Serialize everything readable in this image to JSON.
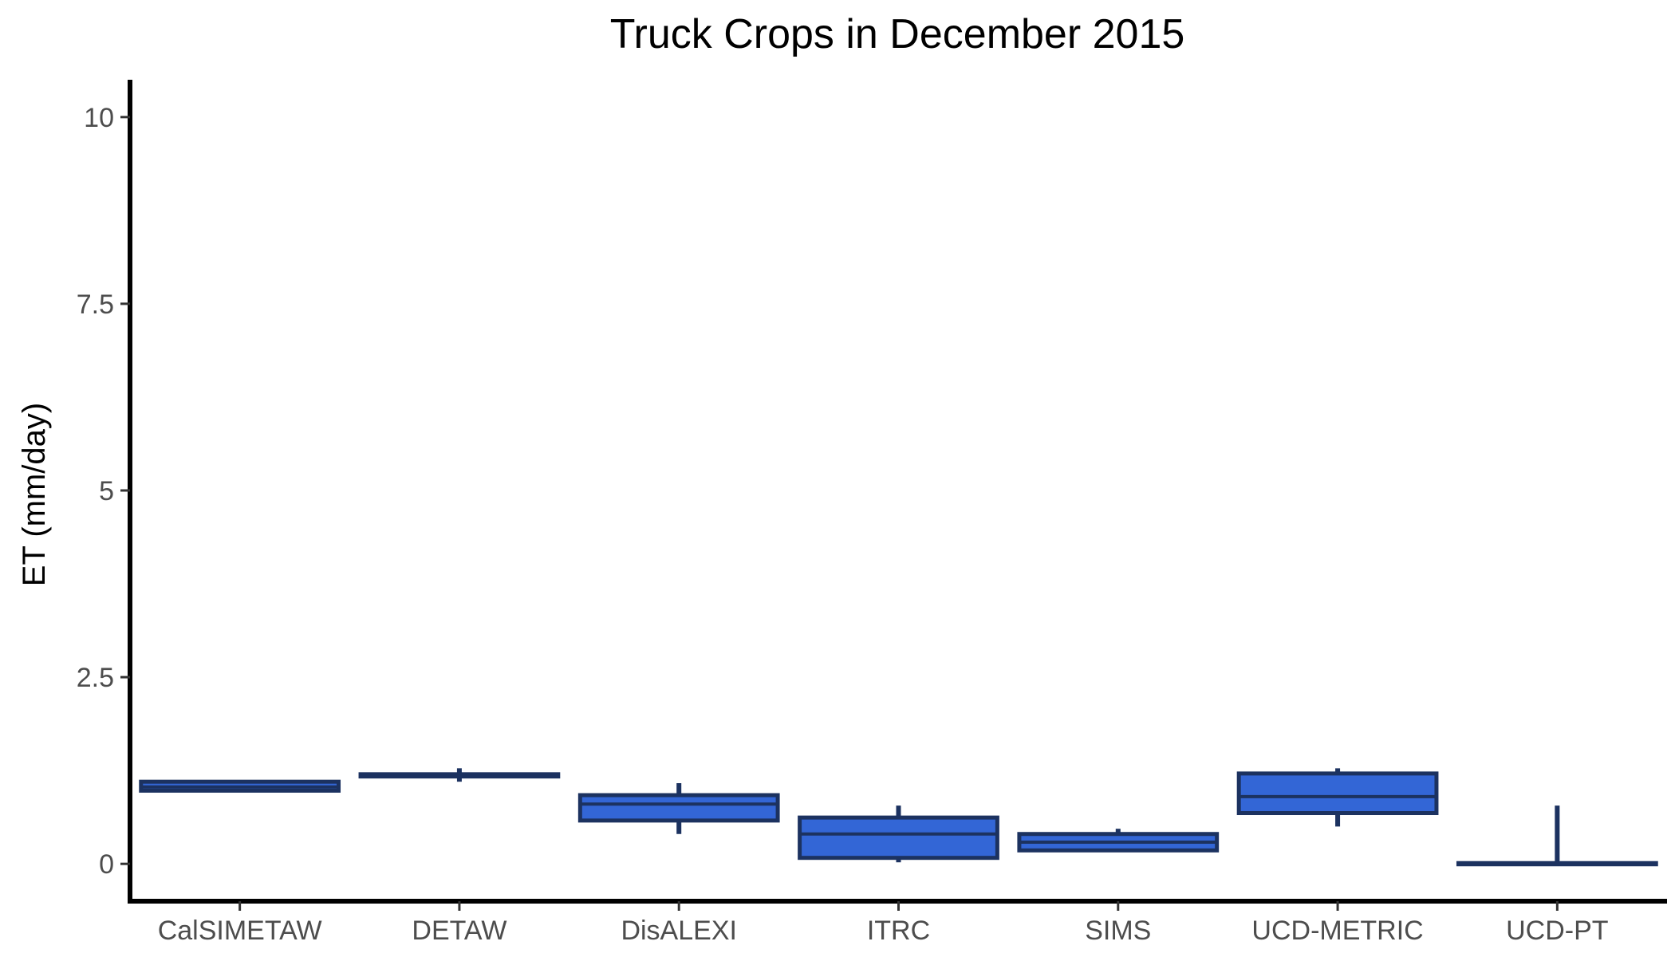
{
  "chart_data": {
    "type": "box",
    "title": "Truck Crops in December 2015",
    "xlabel": "",
    "ylabel": "ET (mm/day)",
    "ylim": [
      -0.5,
      10.5
    ],
    "yticks": [
      0,
      2.5,
      5,
      7.5,
      10
    ],
    "ytick_labels": [
      "0",
      "2.5",
      "5",
      "7.5",
      "10"
    ],
    "grid": false,
    "legend": "none",
    "categories": [
      "CalSIMETAW",
      "DETAW",
      "DisALEXI",
      "ITRC",
      "SIMS",
      "UCD-METRIC",
      "UCD-PT"
    ],
    "boxes": [
      {
        "category": "CalSIMETAW",
        "min": 0.97,
        "q1": 0.98,
        "median": 1.03,
        "q3": 1.1,
        "max": 1.11
      },
      {
        "category": "DETAW",
        "min": 1.1,
        "q1": 1.17,
        "median": 1.19,
        "q3": 1.2,
        "max": 1.28
      },
      {
        "category": "DisALEXI",
        "min": 0.4,
        "q1": 0.58,
        "median": 0.8,
        "q3": 0.92,
        "max": 1.08
      },
      {
        "category": "ITRC",
        "min": 0.02,
        "q1": 0.08,
        "median": 0.4,
        "q3": 0.62,
        "max": 0.78
      },
      {
        "category": "SIMS",
        "min": 0.17,
        "q1": 0.18,
        "median": 0.29,
        "q3": 0.4,
        "max": 0.47
      },
      {
        "category": "UCD-METRIC",
        "min": 0.5,
        "q1": 0.68,
        "median": 0.9,
        "q3": 1.21,
        "max": 1.28
      },
      {
        "category": "UCD-PT",
        "min": 0.0,
        "q1": 0.0,
        "median": 0.0,
        "q3": 0.01,
        "max": 0.78
      }
    ],
    "colors": {
      "box_fill": "#3366d6",
      "box_stroke": "#1c3260",
      "axis": "#000000"
    }
  }
}
